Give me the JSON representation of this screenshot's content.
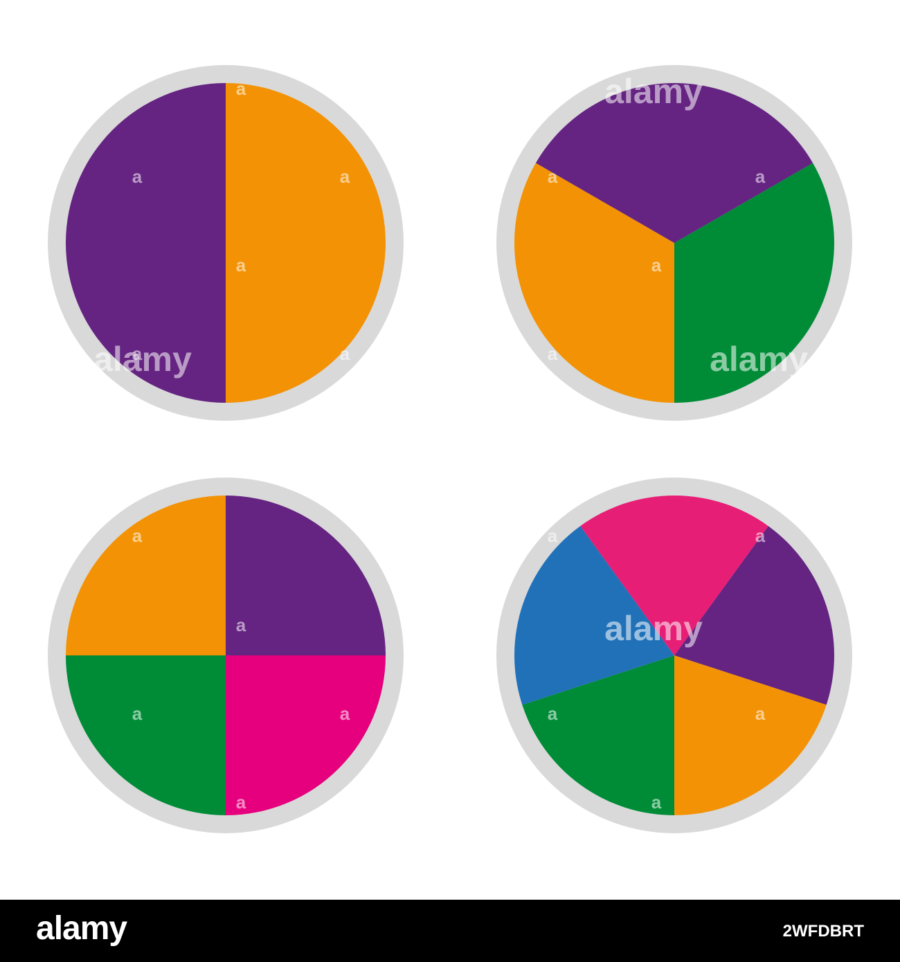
{
  "chart_data": [
    {
      "type": "pie",
      "values": [
        1,
        1
      ],
      "colors": [
        "#f39205",
        "#652382"
      ],
      "start_angle_deg": 0,
      "direction": "clockwise"
    },
    {
      "type": "pie",
      "values": [
        1,
        1,
        1
      ],
      "colors": [
        "#008c37",
        "#f39205",
        "#652382"
      ],
      "start_angle_deg": 60,
      "direction": "clockwise"
    },
    {
      "type": "pie",
      "values": [
        1,
        1,
        1,
        1
      ],
      "colors": [
        "#652382",
        "#e6007e",
        "#008c37",
        "#f39205"
      ],
      "start_angle_deg": 0,
      "direction": "clockwise"
    },
    {
      "type": "pie",
      "values": [
        1,
        1,
        1,
        1,
        1
      ],
      "colors": [
        "#652382",
        "#f39205",
        "#008c37",
        "#2171b9",
        "#e71e75"
      ],
      "start_angle_deg": 36,
      "direction": "clockwise"
    }
  ],
  "ring_color": "#d9d9d9",
  "watermark": {
    "text": "alamy",
    "small": "a"
  },
  "footer": {
    "logo": "alamy",
    "image_id": "2WFDBRT"
  }
}
